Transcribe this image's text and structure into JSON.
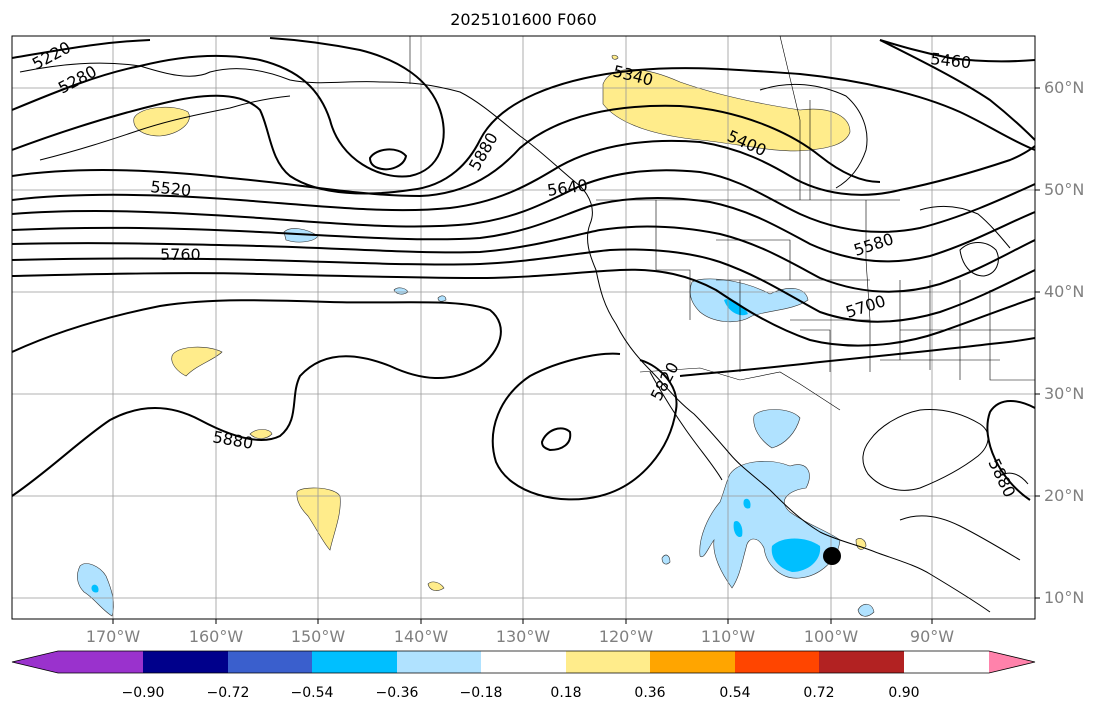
{
  "title": "2025101600 F060",
  "longitude_labels": [
    "170°W",
    "160°W",
    "150°W",
    "140°W",
    "130°W",
    "120°W",
    "110°W",
    "100°W",
    "90°W"
  ],
  "latitude_labels": [
    "60°N",
    "50°N",
    "40°N",
    "30°N",
    "20°N",
    "10°N"
  ],
  "contour_labels": [
    "5220",
    "5280",
    "5340",
    "5400",
    "5460",
    "5520",
    "5580",
    "5640",
    "5700",
    "5760",
    "5820",
    "5880",
    "5880",
    "5880"
  ],
  "colorbar": {
    "tick_labels": [
      "−0.90",
      "−0.72",
      "−0.54",
      "−0.36",
      "−0.18",
      "0.18",
      "0.36",
      "0.54",
      "0.72",
      "0.90"
    ],
    "colors": [
      "#9a32cd",
      "#00008b",
      "#3a5fcd",
      "#00bfff",
      "#b0e2ff",
      "#ffffff",
      "#ffec8b",
      "#ffa500",
      "#ff4500",
      "#b22222",
      "#ff82ab"
    ]
  },
  "colors": {
    "positive_fill": "#ffec8b",
    "negative_fill": "#b0e2ff",
    "strong_negative_fill": "#00bfff",
    "contour": "#000000",
    "grid": "#999999",
    "axis_label": "#808080"
  },
  "marker": "black-dot"
}
